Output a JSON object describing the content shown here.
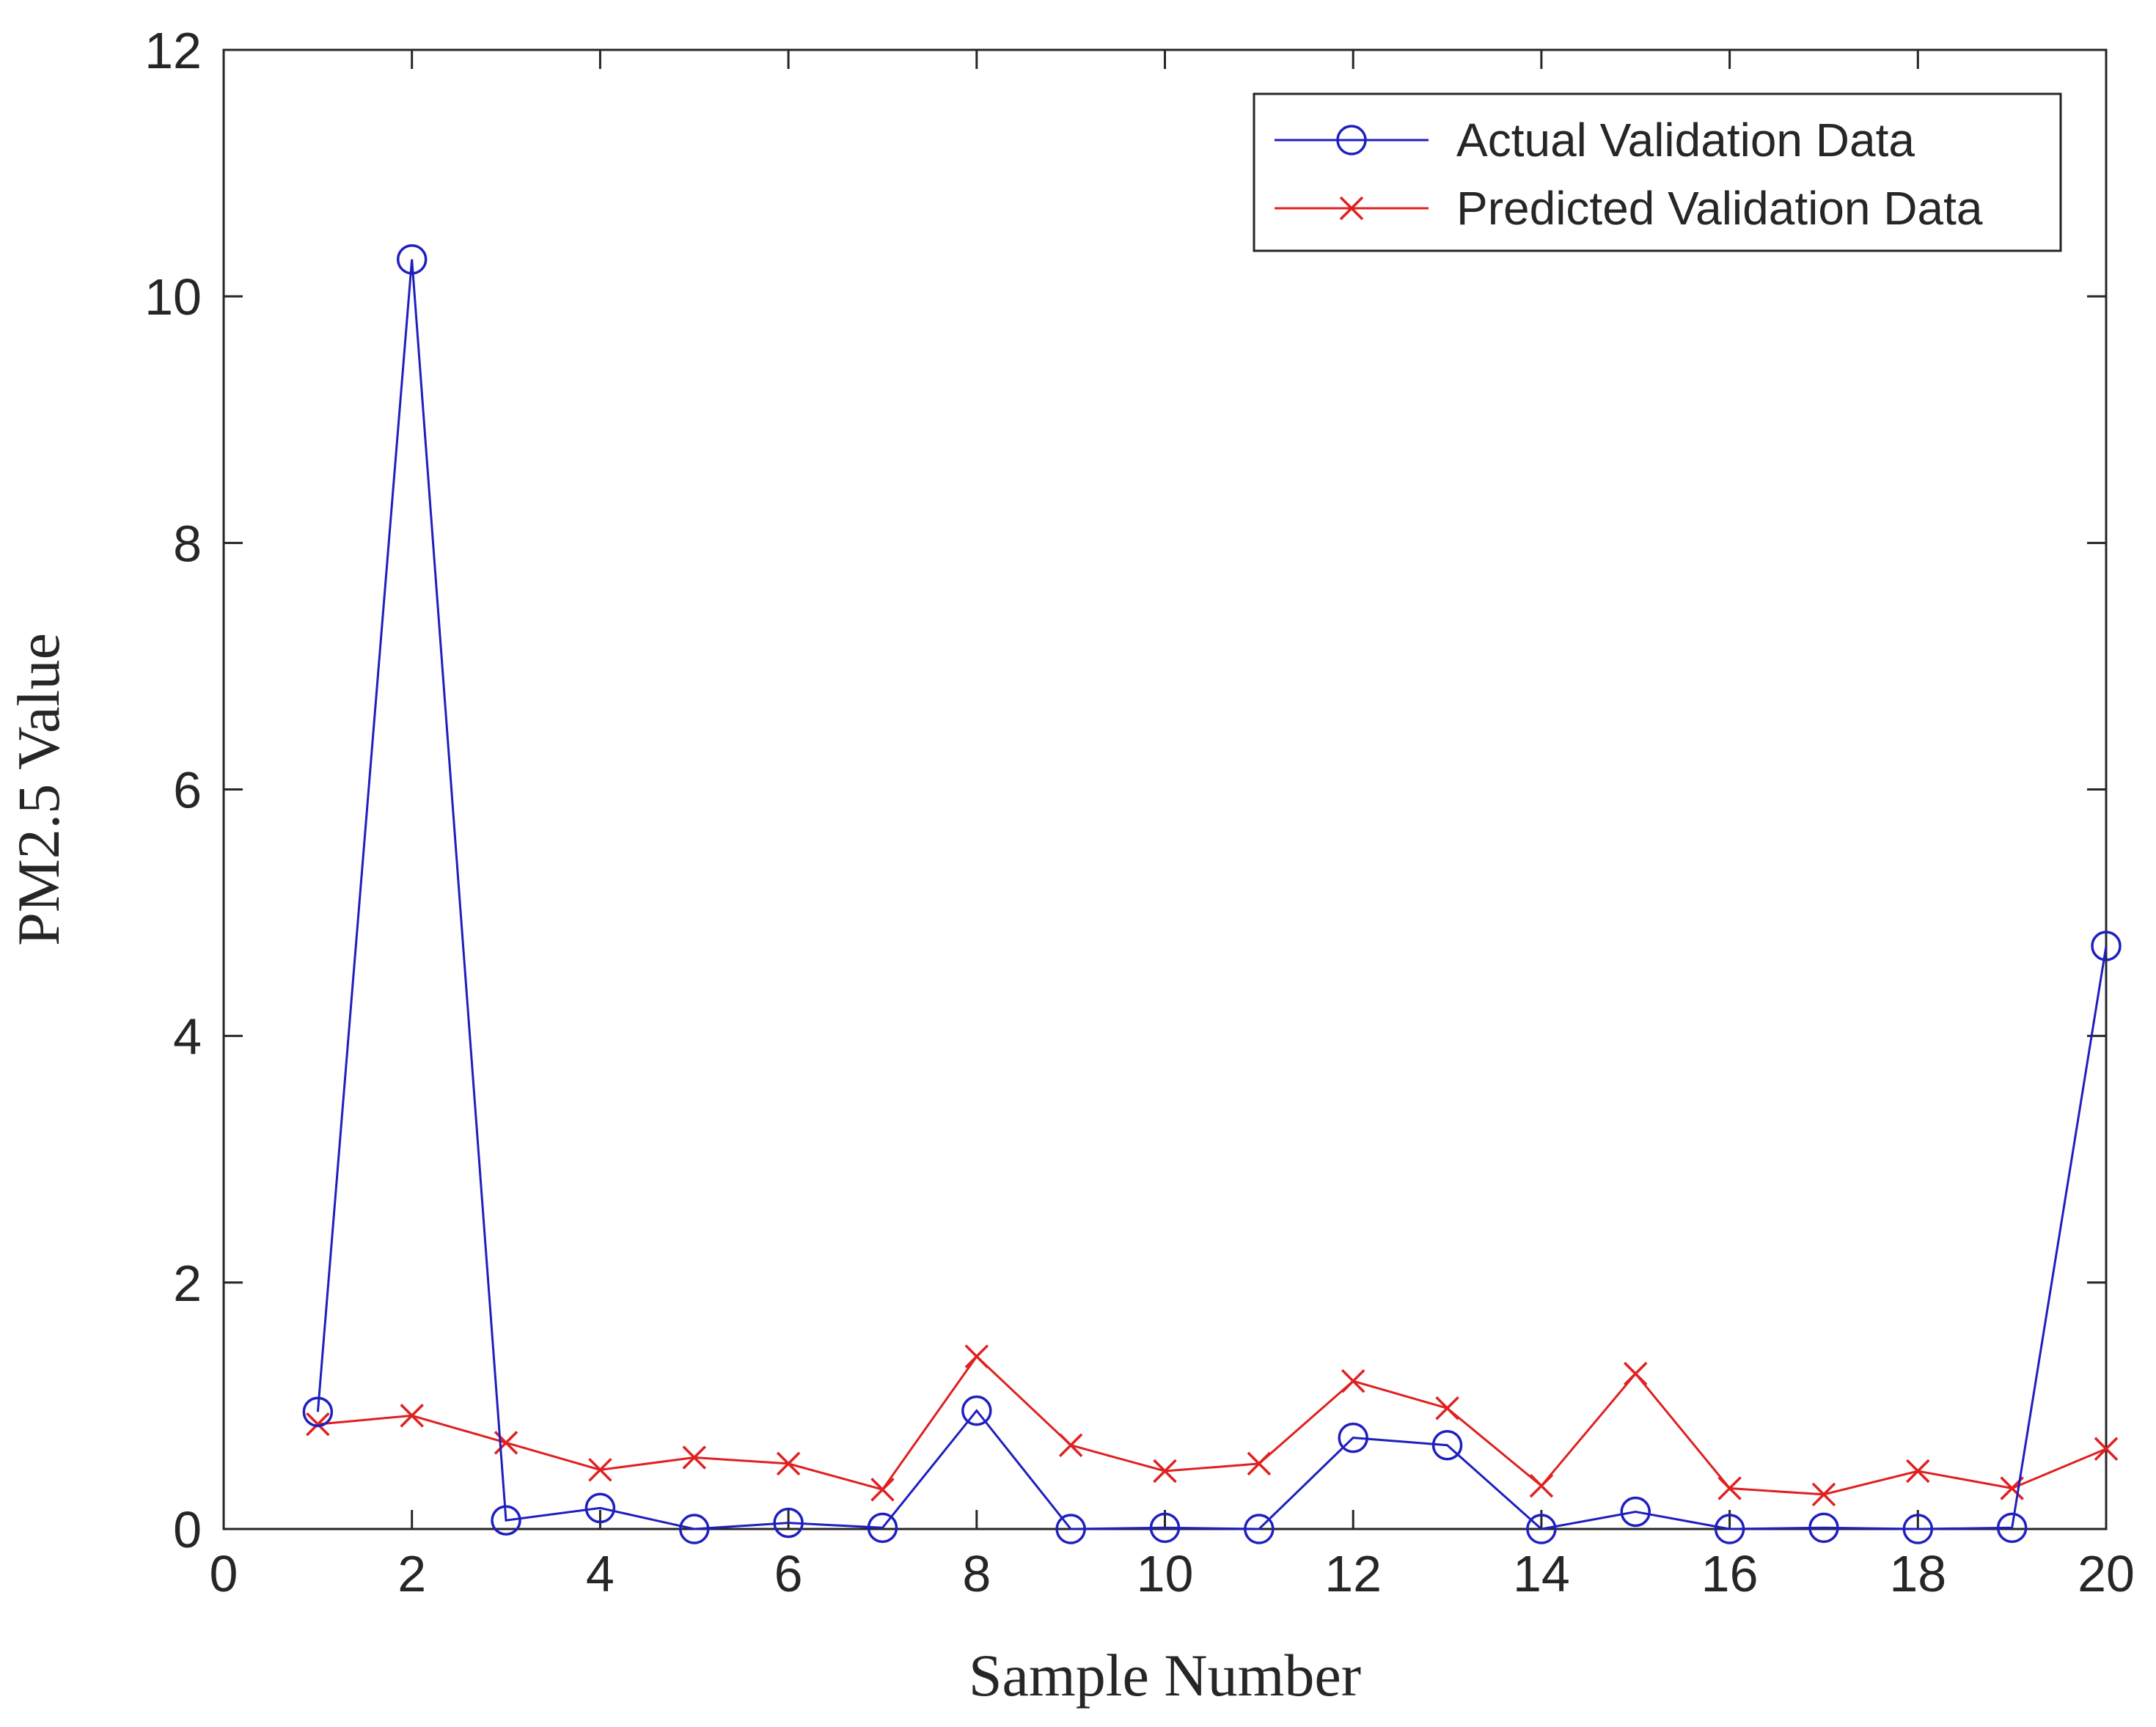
{
  "chart_data": {
    "type": "line",
    "title": "",
    "xlabel": "Sample Number",
    "ylabel": "PM2.5 Value",
    "xlim": [
      0,
      20
    ],
    "ylim": [
      0,
      12
    ],
    "xticks": [
      "0",
      "2",
      "4",
      "6",
      "8",
      "10",
      "12",
      "14",
      "16",
      "18",
      "20"
    ],
    "yticks": [
      "0",
      "2",
      "4",
      "6",
      "8",
      "10",
      "12"
    ],
    "grid": false,
    "legend_position": "top-right",
    "x": [
      1,
      2,
      3,
      4,
      5,
      6,
      7,
      8,
      9,
      10,
      11,
      12,
      13,
      14,
      15,
      16,
      17,
      18,
      19,
      20
    ],
    "series": [
      {
        "name": "Actual Validation Data",
        "color": "#1f1fbf",
        "marker": "circle",
        "values": [
          0.95,
          10.3,
          0.07,
          0.17,
          0.0,
          0.05,
          0.01,
          0.96,
          0.0,
          0.01,
          0.0,
          0.74,
          0.68,
          0.0,
          0.14,
          0.0,
          0.01,
          0.0,
          0.01,
          4.73
        ]
      },
      {
        "name": "Predicted Validation Data",
        "color": "#e02020",
        "marker": "x",
        "values": [
          0.85,
          0.92,
          0.7,
          0.48,
          0.58,
          0.53,
          0.32,
          1.4,
          0.68,
          0.47,
          0.53,
          1.2,
          0.98,
          0.35,
          1.26,
          0.33,
          0.28,
          0.47,
          0.33,
          0.65
        ]
      }
    ]
  }
}
